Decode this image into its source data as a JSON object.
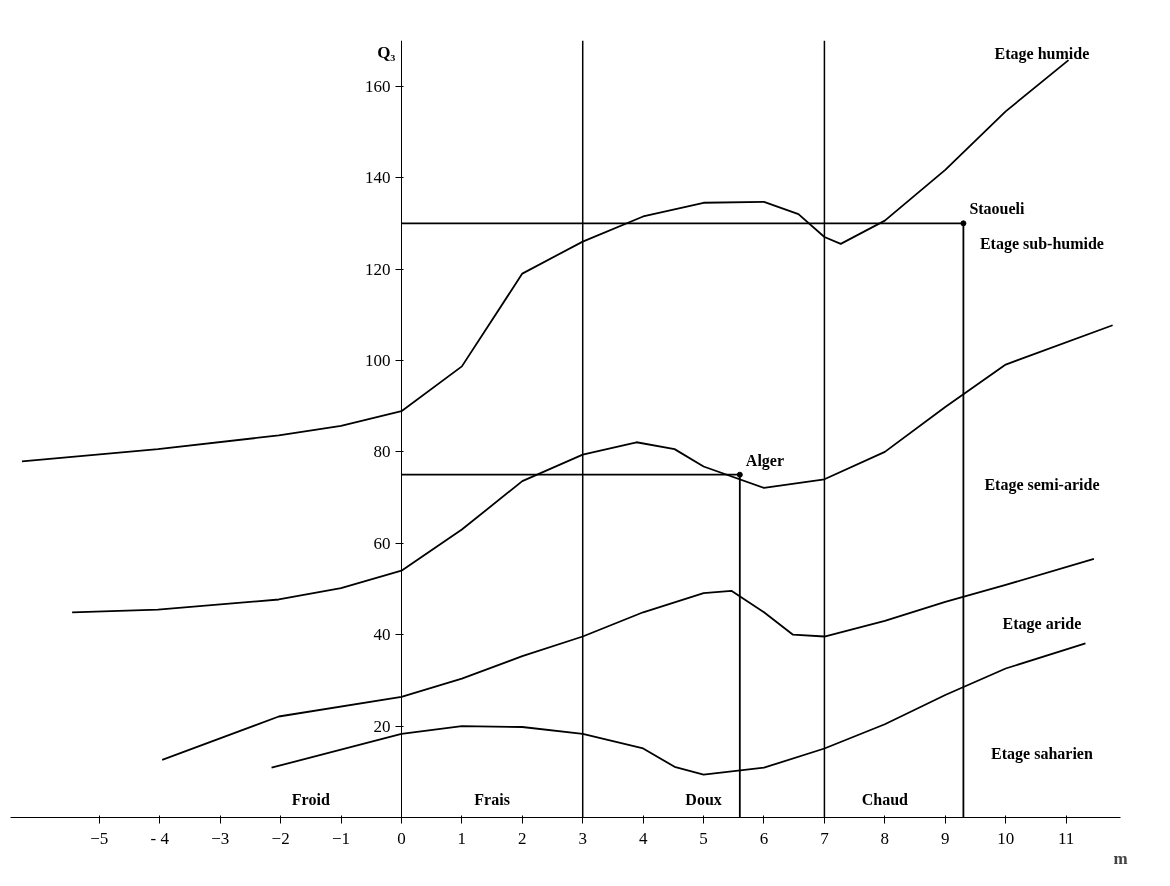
{
  "chart_data": {
    "type": "line",
    "xlabel": "m",
    "ylabel": "Q₃",
    "xlim": [
      -6.47,
      11.9
    ],
    "ylim": [
      0,
      170
    ],
    "xticks": [
      -5,
      {
        "value": -4,
        "label": "- 4"
      },
      -3,
      -2,
      -1,
      0,
      1,
      2,
      3,
      4,
      5,
      6,
      7,
      8,
      9,
      10,
      11
    ],
    "yticks": [
      {
        "value": 0,
        "label": null
      },
      20,
      40,
      60,
      80,
      100,
      120,
      140,
      160
    ],
    "series": [
      {
        "color": "#000000",
        "x": [
          -6.28,
          -4.03,
          -2.03,
          -1,
          0,
          1,
          2,
          3,
          4,
          5,
          6,
          6.57,
          7,
          7.27,
          8,
          9,
          10,
          11.04
        ],
        "values": [
          77.9,
          80.6,
          83.6,
          85.7,
          88.9,
          98.7,
          119,
          126,
          131.5,
          134.5,
          134.7,
          132,
          127,
          125.5,
          130.6,
          141.7,
          154.5,
          165.7
        ]
      },
      {
        "color": "#000000",
        "x": [
          -5.45,
          -4.03,
          -2.03,
          -1,
          0,
          1,
          2,
          3,
          3.89,
          4.52,
          5,
          6,
          7,
          8,
          9,
          10,
          11.77
        ],
        "values": [
          44.9,
          45.5,
          47.7,
          50.2,
          54,
          63,
          73.6,
          79.4,
          82.1,
          80.6,
          76.8,
          72.1,
          74,
          80,
          89.8,
          99.1,
          107.7
        ]
      },
      {
        "color": "#000000",
        "x": [
          -3.96,
          -2.03,
          0,
          1,
          2,
          3,
          4,
          5,
          5.46,
          6,
          6.48,
          7,
          8,
          9,
          10,
          11.46
        ],
        "values": [
          12.6,
          22.1,
          26.4,
          30.4,
          35.3,
          39.6,
          44.9,
          49.1,
          49.6,
          44.9,
          40,
          39.6,
          43,
          47.2,
          50.9,
          56.6
        ]
      },
      {
        "color": "#000000",
        "x": [
          -2.15,
          0,
          1,
          2,
          3,
          4,
          4.52,
          5,
          6,
          7,
          8,
          9,
          10,
          11.32
        ],
        "values": [
          10.9,
          18.3,
          20,
          19.8,
          18.3,
          15.1,
          11.1,
          9.4,
          10.9,
          15.1,
          20.4,
          26.8,
          32.6,
          38.1
        ]
      },
      {
        "name": "Staoueli",
        "color": "#000000",
        "x": [
          0,
          9.3,
          9.3
        ],
        "values": [
          130,
          130,
          0
        ]
      },
      {
        "name": "Alger",
        "color": "#000000",
        "x": [
          0,
          5.6,
          5.6
        ],
        "values": [
          75,
          75,
          0
        ]
      }
    ],
    "ref_lines": [
      {
        "axis": "x",
        "value": 3,
        "color": "#000000"
      },
      {
        "axis": "x",
        "value": 7,
        "color": "#000000"
      }
    ],
    "annotations": [
      "Etage humide",
      "Etage sub-humide",
      "Etage semi-aride",
      "Etage aride",
      "Etage saharien",
      "Froid",
      "Frais",
      "Doux",
      "Chaud"
    ]
  }
}
